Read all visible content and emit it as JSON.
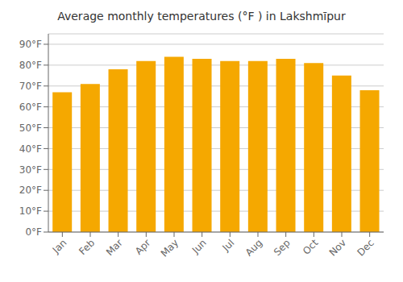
{
  "chart_data": {
    "type": "bar",
    "title": "Average monthly temperatures (°F ) in Lakshmīpur",
    "categories": [
      "Jan",
      "Feb",
      "Mar",
      "Apr",
      "May",
      "Jun",
      "Jul",
      "Aug",
      "Sep",
      "Oct",
      "Nov",
      "Dec"
    ],
    "values": [
      67,
      71,
      78,
      82,
      84,
      83,
      82,
      82,
      83,
      81,
      75,
      68
    ],
    "color": "#F5A800",
    "ylim": [
      0,
      95
    ],
    "yticks": [
      {
        "value": 0,
        "label": "0°F"
      },
      {
        "value": 10,
        "label": "10°F"
      },
      {
        "value": 20,
        "label": "20°F"
      },
      {
        "value": 30,
        "label": "30°F"
      },
      {
        "value": 40,
        "label": "40°F"
      },
      {
        "value": 50,
        "label": "50°F"
      },
      {
        "value": 60,
        "label": "60°F"
      },
      {
        "value": 70,
        "label": "70°F"
      },
      {
        "value": 80,
        "label": "80°F"
      },
      {
        "value": 90,
        "label": "90°F"
      }
    ],
    "grid": true
  }
}
